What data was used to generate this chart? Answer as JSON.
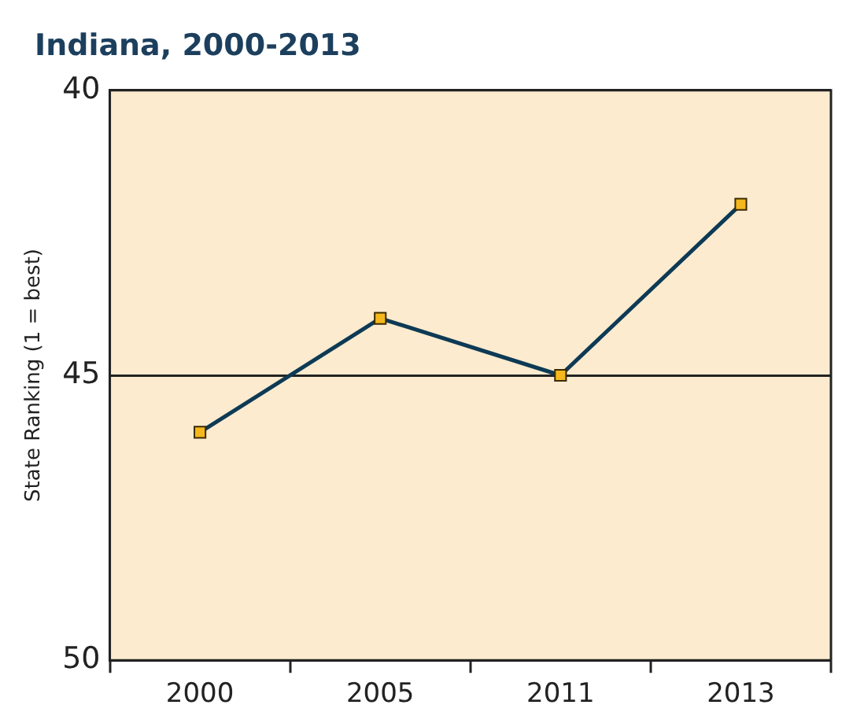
{
  "chart_data": {
    "type": "line",
    "title": "Indiana, 2000-2013",
    "ylabel": "State Ranking (1 = best)",
    "categories": [
      "2000",
      "2005",
      "2011",
      "2013"
    ],
    "series": [
      {
        "color": "#0d3a55",
        "values": [
          46,
          44,
          45,
          42
        ]
      }
    ],
    "ylim": [
      50,
      40
    ],
    "yticks": [
      40,
      45,
      50
    ],
    "grid": "y",
    "legend": false,
    "marker": "square",
    "line_style": "solid"
  }
}
